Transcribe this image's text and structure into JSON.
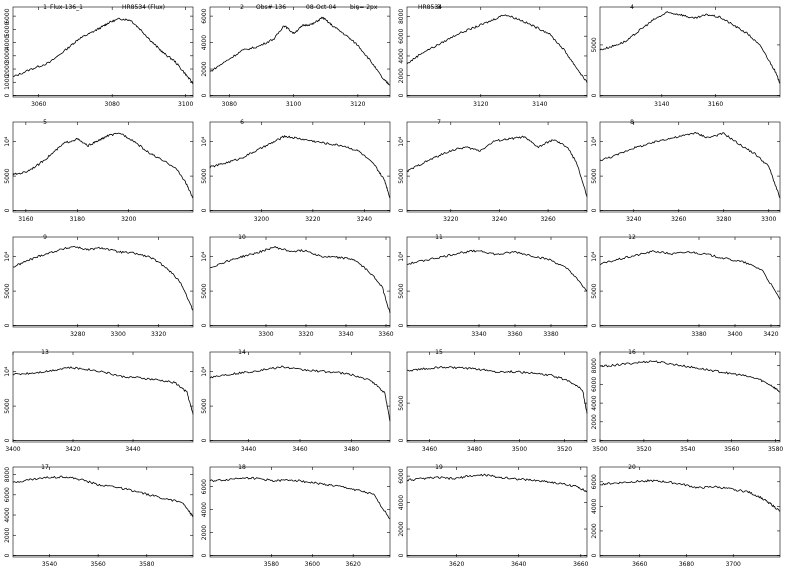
{
  "header": {
    "panel1": "Flux-136_1",
    "object": "HR8534 (Flux)",
    "obs": "Obs# 136",
    "date": "08-Oct-04",
    "bin": "bin= 2px",
    "panel3": "HR8534"
  },
  "chart_data": [
    {
      "num": "1",
      "type": "line",
      "xlim": [
        3053,
        3102
      ],
      "xticks": [
        "3060",
        "3080",
        "3100"
      ],
      "yticks": [
        "0",
        "1000",
        "2000",
        "3000",
        "4000",
        "5000",
        "6000"
      ],
      "ylim": [
        0,
        6500
      ],
      "y_orient": "vertical",
      "x": [
        3053,
        3058,
        3063,
        3068,
        3071,
        3074,
        3077,
        3079,
        3082,
        3085,
        3088,
        3091,
        3094,
        3097,
        3100,
        3102
      ],
      "y": [
        1400,
        2000,
        2500,
        3600,
        4300,
        4700,
        5150,
        5500,
        5800,
        5700,
        4900,
        4000,
        3200,
        2600,
        1600,
        900
      ]
    },
    {
      "num": "2",
      "type": "line",
      "xlim": [
        3074,
        3130
      ],
      "xticks": [
        "3080",
        "3100",
        "3120"
      ],
      "yticks": [
        "0",
        "2000",
        "4000",
        "6000"
      ],
      "ylim": [
        0,
        6500
      ],
      "y_orient": "vertical",
      "x": [
        3074,
        3079,
        3084,
        3089,
        3094,
        3097,
        3100,
        3103,
        3106,
        3109,
        3112,
        3116,
        3120,
        3124,
        3128,
        3130
      ],
      "y": [
        1800,
        2600,
        3400,
        3700,
        4300,
        5300,
        4700,
        5300,
        5400,
        5900,
        5300,
        4600,
        3800,
        2600,
        1200,
        800
      ]
    },
    {
      "num": "3",
      "type": "line",
      "xlim": [
        3095,
        3156
      ],
      "xticks": [
        "3120",
        "3140"
      ],
      "yticks": [
        "0",
        "2000",
        "4000",
        "6000",
        "8000"
      ],
      "ylim": [
        0,
        8700
      ],
      "y_orient": "vertical",
      "x": [
        3095,
        3100,
        3106,
        3112,
        3118,
        3123,
        3128,
        3133,
        3138,
        3143,
        3148,
        3152,
        3156
      ],
      "y": [
        3200,
        4300,
        5200,
        6200,
        6900,
        7500,
        8200,
        7700,
        7000,
        6300,
        4700,
        3000,
        1300
      ]
    },
    {
      "num": "4",
      "type": "line",
      "xlim": [
        3117,
        3184
      ],
      "xticks": [
        "3140",
        "3160"
      ],
      "yticks": [
        "0",
        "5000"
      ],
      "ylim": [
        0,
        8500
      ],
      "y_orient": "vertical",
      "x": [
        3117,
        3122,
        3127,
        3132,
        3137,
        3142,
        3147,
        3152,
        3157,
        3162,
        3167,
        3172,
        3177,
        3182,
        3184
      ],
      "y": [
        4500,
        4900,
        5400,
        6500,
        7500,
        8200,
        8000,
        7600,
        8000,
        7700,
        6900,
        6100,
        4800,
        2500,
        1200
      ]
    },
    {
      "num": "5",
      "type": "line",
      "xlim": [
        3155,
        3225
      ],
      "xticks": [
        "3160",
        "3180",
        "3200"
      ],
      "yticks": [
        "0",
        "5000",
        "10⁴"
      ],
      "ylim": [
        0,
        12500
      ],
      "y_orient": "vertical",
      "x": [
        3155,
        3160,
        3165,
        3170,
        3175,
        3180,
        3184,
        3188,
        3192,
        3197,
        3202,
        3207,
        3212,
        3218,
        3222,
        3225
      ],
      "y": [
        5200,
        5600,
        6700,
        8200,
        9800,
        10400,
        9400,
        10100,
        10900,
        11200,
        10100,
        8600,
        7500,
        6300,
        4200,
        1800
      ]
    },
    {
      "num": "6",
      "type": "line",
      "xlim": [
        3180,
        3250
      ],
      "xticks": [
        "3200",
        "3220",
        "3240"
      ],
      "yticks": [
        "0",
        "5000",
        "10⁴"
      ],
      "ylim": [
        0,
        12500
      ],
      "y_orient": "vertical",
      "x": [
        3180,
        3186,
        3192,
        3198,
        3204,
        3209,
        3214,
        3220,
        3226,
        3232,
        3238,
        3244,
        3248,
        3250
      ],
      "y": [
        6300,
        6900,
        7600,
        8700,
        9800,
        10800,
        10500,
        10100,
        9700,
        9400,
        8600,
        6600,
        4300,
        1800
      ]
    },
    {
      "num": "7",
      "type": "line",
      "xlim": [
        3202,
        3276
      ],
      "xticks": [
        "3220",
        "3240",
        "3260"
      ],
      "yticks": [
        "0",
        "5000",
        "10⁴"
      ],
      "ylim": [
        0,
        12500
      ],
      "y_orient": "vertical",
      "x": [
        3202,
        3208,
        3214,
        3220,
        3226,
        3232,
        3238,
        3244,
        3250,
        3256,
        3262,
        3268,
        3272,
        3276
      ],
      "y": [
        5700,
        6800,
        7800,
        8700,
        9200,
        8700,
        10100,
        10400,
        10700,
        9200,
        10300,
        9200,
        6700,
        2000
      ]
    },
    {
      "num": "8",
      "type": "line",
      "xlim": [
        3225,
        3305
      ],
      "xticks": [
        "3240",
        "3260",
        "3280",
        "3300"
      ],
      "yticks": [
        "0",
        "5000",
        "10⁴"
      ],
      "ylim": [
        0,
        12500
      ],
      "y_orient": "vertical",
      "x": [
        3225,
        3232,
        3239,
        3246,
        3253,
        3260,
        3267,
        3273,
        3280,
        3287,
        3294,
        3300,
        3305
      ],
      "y": [
        7300,
        8000,
        9000,
        9600,
        10300,
        10700,
        11300,
        10600,
        11200,
        9600,
        8200,
        6400,
        1800
      ]
    },
    {
      "num": "9",
      "type": "line",
      "xlim": [
        3248,
        3337
      ],
      "xticks": [
        "3280",
        "3300",
        "3320"
      ],
      "yticks": [
        "0",
        "5000",
        "10⁴"
      ],
      "ylim": [
        0,
        12500
      ],
      "y_orient": "vertical",
      "x": [
        3248,
        3255,
        3262,
        3270,
        3278,
        3285,
        3292,
        3300,
        3308,
        3316,
        3324,
        3331,
        3337
      ],
      "y": [
        8500,
        9400,
        10200,
        10900,
        11500,
        11000,
        11300,
        10700,
        10500,
        9900,
        8400,
        6200,
        2200
      ]
    },
    {
      "num": "10",
      "type": "line",
      "xlim": [
        3272,
        3362
      ],
      "xticks": [
        "3300",
        "3320",
        "3340",
        "3360"
      ],
      "yticks": [
        "0",
        "5000",
        "10⁴"
      ],
      "ylim": [
        0,
        12500
      ],
      "y_orient": "vertical",
      "x": [
        3272,
        3280,
        3288,
        3296,
        3304,
        3312,
        3320,
        3328,
        3336,
        3344,
        3352,
        3358,
        3362
      ],
      "y": [
        8400,
        9300,
        10000,
        10600,
        11400,
        10800,
        10900,
        10000,
        9900,
        9600,
        7700,
        5700,
        1800
      ]
    },
    {
      "num": "11",
      "type": "line",
      "xlim": [
        3300,
        3400
      ],
      "xticks": [
        "3340",
        "3360",
        "3380"
      ],
      "yticks": [
        "0",
        "5000",
        "10⁴"
      ],
      "ylim": [
        0,
        12500
      ],
      "y_orient": "vertical",
      "x": [
        3300,
        3310,
        3320,
        3330,
        3340,
        3350,
        3360,
        3370,
        3380,
        3390,
        3400
      ],
      "y": [
        8900,
        9500,
        10000,
        10600,
        10900,
        10300,
        10700,
        10100,
        9500,
        8100,
        5000
      ]
    },
    {
      "num": "12",
      "type": "line",
      "xlim": [
        3325,
        3425
      ],
      "xticks": [
        "3380",
        "3400",
        "3420"
      ],
      "yticks": [
        "0",
        "5000",
        "10⁴"
      ],
      "ylim": [
        0,
        12500
      ],
      "y_orient": "vertical",
      "x": [
        3325,
        3335,
        3345,
        3355,
        3365,
        3375,
        3385,
        3395,
        3405,
        3415,
        3425
      ],
      "y": [
        8900,
        9600,
        10200,
        10800,
        10400,
        10700,
        10300,
        9700,
        9200,
        8100,
        3800
      ]
    },
    {
      "num": "13",
      "type": "line",
      "xlim": [
        3400,
        3460
      ],
      "xticks": [
        "3400",
        "3420",
        "3440"
      ],
      "yticks": [
        "0",
        "5000",
        "10⁴"
      ],
      "ylim": [
        0,
        12500
      ],
      "y_orient": "vertical",
      "x": [
        3400,
        3406,
        3412,
        3418,
        3424,
        3430,
        3436,
        3442,
        3448,
        3454,
        3458,
        3460
      ],
      "y": [
        9600,
        9800,
        10100,
        10600,
        10400,
        10000,
        9300,
        9100,
        8800,
        8400,
        7000,
        3800
      ]
    },
    {
      "num": "14",
      "type": "line",
      "xlim": [
        3425,
        3495
      ],
      "xticks": [
        "3440",
        "3460",
        "3480"
      ],
      "yticks": [
        "0",
        "5000",
        "10⁴"
      ],
      "ylim": [
        0,
        12500
      ],
      "y_orient": "vertical",
      "x": [
        3425,
        3432,
        3439,
        3446,
        3453,
        3460,
        3467,
        3474,
        3481,
        3488,
        3493,
        3495
      ],
      "y": [
        9200,
        9600,
        9900,
        10300,
        10700,
        10300,
        10100,
        9900,
        9500,
        8600,
        6900,
        2800
      ]
    },
    {
      "num": "15",
      "type": "line",
      "xlim": [
        3450,
        3530
      ],
      "xticks": [
        "3460",
        "3480",
        "3500",
        "3520"
      ],
      "yticks": [
        "0",
        "5000"
      ],
      "ylim": [
        0,
        11500
      ],
      "y_orient": "vertical",
      "x": [
        3450,
        3458,
        3466,
        3474,
        3482,
        3490,
        3498,
        3506,
        3514,
        3522,
        3528,
        3530
      ],
      "y": [
        9300,
        9600,
        9800,
        9700,
        9500,
        9200,
        9200,
        9000,
        8700,
        8000,
        6800,
        3600
      ]
    },
    {
      "num": "16",
      "type": "line",
      "xlim": [
        3500,
        3582
      ],
      "xticks": [
        "3500",
        "3520",
        "3540",
        "3560",
        "3580"
      ],
      "yticks": [
        "0",
        "2000",
        "4000",
        "6000",
        "8000"
      ],
      "ylim": [
        0,
        9200
      ],
      "y_orient": "vertical",
      "x": [
        3500,
        3508,
        3516,
        3524,
        3532,
        3540,
        3548,
        3556,
        3564,
        3572,
        3578,
        3582
      ],
      "y": [
        7900,
        8100,
        8300,
        8500,
        8200,
        7900,
        7600,
        7300,
        7000,
        6600,
        5900,
        5200
      ]
    },
    {
      "num": "17",
      "type": "line",
      "xlim": [
        3525,
        3599
      ],
      "xticks": [
        "3540",
        "3560",
        "3580"
      ],
      "yticks": [
        "0",
        "2000",
        "4000",
        "6000",
        "8000"
      ],
      "ylim": [
        0,
        8500
      ],
      "y_orient": "vertical",
      "x": [
        3525,
        3532,
        3539,
        3546,
        3553,
        3560,
        3567,
        3574,
        3581,
        3588,
        3595,
        3599
      ],
      "y": [
        7200,
        7500,
        7700,
        7800,
        7500,
        7000,
        6800,
        6400,
        6000,
        5600,
        5200,
        3800
      ]
    },
    {
      "num": "18",
      "type": "line",
      "xlim": [
        3550,
        3638
      ],
      "xticks": [
        "3580",
        "3600",
        "3620"
      ],
      "yticks": [
        "0",
        "2000",
        "4000",
        "6000"
      ],
      "ylim": [
        0,
        7500
      ],
      "y_orient": "vertical",
      "x": [
        3550,
        3558,
        3566,
        3574,
        3582,
        3590,
        3598,
        3606,
        3614,
        3622,
        3630,
        3638
      ],
      "y": [
        6500,
        6600,
        6800,
        6700,
        6500,
        6600,
        6400,
        6200,
        6000,
        5700,
        5300,
        3200
      ]
    },
    {
      "num": "19",
      "type": "line",
      "xlim": [
        3604,
        3662
      ],
      "xticks": [
        "3620",
        "3640",
        "3660"
      ],
      "yticks": [
        "0",
        "2000",
        "4000",
        "6000"
      ],
      "ylim": [
        0,
        6500
      ],
      "y_orient": "vertical",
      "x": [
        3604,
        3609,
        3614,
        3619,
        3624,
        3629,
        3634,
        3639,
        3644,
        3649,
        3654,
        3659,
        3662
      ],
      "y": [
        5700,
        5800,
        5900,
        5800,
        6000,
        6100,
        5900,
        5800,
        5700,
        5600,
        5400,
        5200,
        4800
      ]
    },
    {
      "num": "20",
      "type": "line",
      "xlim": [
        3643,
        3720
      ],
      "xticks": [
        "3660",
        "3680",
        "3700"
      ],
      "yticks": [
        "0",
        "2000",
        "4000",
        "6000"
      ],
      "ylim": [
        0,
        7000
      ],
      "y_orient": "vertical",
      "x": [
        3643,
        3650,
        3657,
        3664,
        3671,
        3678,
        3685,
        3692,
        3699,
        3706,
        3712,
        3716,
        3720
      ],
      "y": [
        5800,
        5900,
        6000,
        6100,
        6000,
        5800,
        5500,
        5600,
        5400,
        5200,
        4700,
        4200,
        3600
      ]
    }
  ]
}
